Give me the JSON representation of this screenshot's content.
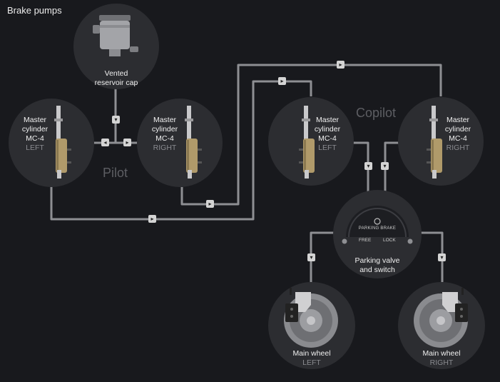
{
  "page_title": "Brake pumps",
  "groups": {
    "pilot": "Pilot",
    "copilot": "Copilot"
  },
  "reservoir": {
    "line1": "Vented",
    "line2": "reservoir cap"
  },
  "cylinders": [
    {
      "line1": "Master",
      "line2": "cylinder",
      "model": "MC-4",
      "side": "LEFT"
    },
    {
      "line1": "Master",
      "line2": "cylinder",
      "model": "MC-4",
      "side": "RIGHT"
    },
    {
      "line1": "Master",
      "line2": "cylinder",
      "model": "MC-4",
      "side": "LEFT"
    },
    {
      "line1": "Master",
      "line2": "cylinder",
      "model": "MC-4",
      "side": "RIGHT"
    }
  ],
  "parking": {
    "gauge_title": "PARKING BRAKE",
    "free": "FREE",
    "lock": "LOCK",
    "line1": "Parking valve",
    "line2": "and switch"
  },
  "wheels": [
    {
      "title": "Main wheel",
      "side": "LEFT"
    },
    {
      "title": "Main wheel",
      "side": "RIGHT"
    }
  ],
  "colors": {
    "background": "#18191d",
    "node": "#2c2d31",
    "pipe": "#8e8f93",
    "flow_marker": "#d4d4d4",
    "cylinder_body": "#b09a6a"
  }
}
